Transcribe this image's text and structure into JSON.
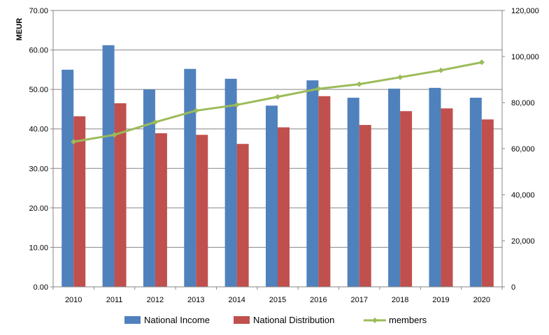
{
  "chart_data": {
    "type": "bar",
    "categories": [
      "2010",
      "2011",
      "2012",
      "2013",
      "2014",
      "2015",
      "2016",
      "2017",
      "2018",
      "2019",
      "2020"
    ],
    "series": [
      {
        "name": "National Income",
        "type": "bar",
        "axis": "left",
        "color": "#4F81BD",
        "values": [
          55.0,
          61.2,
          50.0,
          55.2,
          52.7,
          45.9,
          52.3,
          47.9,
          50.2,
          50.4,
          47.9
        ]
      },
      {
        "name": "National Distribution",
        "type": "bar",
        "axis": "left",
        "color": "#C0504D",
        "values": [
          43.2,
          46.5,
          38.9,
          38.5,
          36.2,
          40.4,
          48.3,
          41.0,
          44.5,
          45.2,
          42.4
        ]
      },
      {
        "name": "members",
        "type": "line",
        "axis": "right",
        "color": "#9BBB59",
        "values": [
          63000,
          66000,
          71500,
          76500,
          79000,
          82500,
          86000,
          88000,
          91000,
          94000,
          97500
        ]
      }
    ],
    "ylabel": "MEUR",
    "ylim": [
      0,
      70
    ],
    "y_ticks": [
      "0.00",
      "10.00",
      "20.00",
      "30.00",
      "40.00",
      "50.00",
      "60.00",
      "70.00"
    ],
    "y2lim": [
      0,
      120000
    ],
    "y2_ticks": [
      "0",
      "20,000",
      "40,000",
      "60,000",
      "80,000",
      "100,000",
      "120,000"
    ],
    "grid": true,
    "legend_position": "bottom"
  }
}
